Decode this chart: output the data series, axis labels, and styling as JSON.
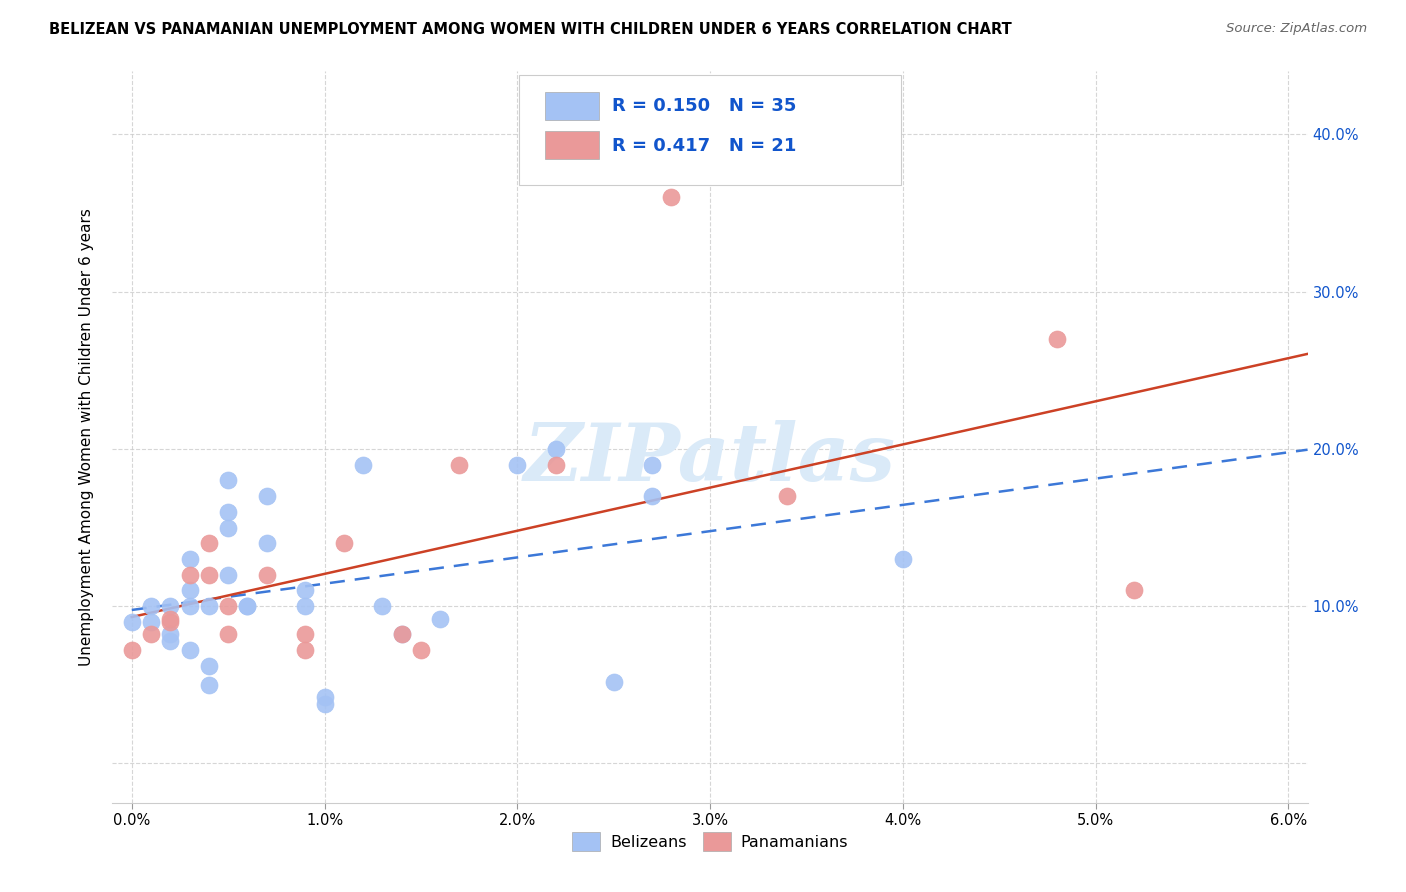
{
  "title": "BELIZEAN VS PANAMANIAN UNEMPLOYMENT AMONG WOMEN WITH CHILDREN UNDER 6 YEARS CORRELATION CHART",
  "source": "Source: ZipAtlas.com",
  "ylabel": "Unemployment Among Women with Children Under 6 years",
  "xlim": [
    -0.001,
    0.061
  ],
  "ylim": [
    -0.025,
    0.44
  ],
  "xticks": [
    0.0,
    0.01,
    0.02,
    0.03,
    0.04,
    0.05,
    0.06
  ],
  "yticks": [
    0.0,
    0.1,
    0.2,
    0.3,
    0.4
  ],
  "ytick_labels_right": [
    "",
    "10.0%",
    "20.0%",
    "30.0%",
    "40.0%"
  ],
  "xtick_labels": [
    "0.0%",
    "1.0%",
    "2.0%",
    "3.0%",
    "4.0%",
    "5.0%",
    "6.0%"
  ],
  "belizean_color": "#a4c2f4",
  "panamanian_color": "#ea9999",
  "belizean_line_color": "#3c78d8",
  "panamanian_line_color": "#cc4125",
  "legend_text_color": "#1155cc",
  "R_belizean": 0.15,
  "N_belizean": 35,
  "R_panamanian": 0.417,
  "N_panamanian": 21,
  "belizean_x": [
    0.0,
    0.001,
    0.001,
    0.002,
    0.002,
    0.002,
    0.003,
    0.003,
    0.003,
    0.003,
    0.004,
    0.004,
    0.004,
    0.005,
    0.005,
    0.005,
    0.005,
    0.006,
    0.006,
    0.007,
    0.007,
    0.009,
    0.009,
    0.01,
    0.01,
    0.012,
    0.013,
    0.014,
    0.016,
    0.02,
    0.022,
    0.025,
    0.027,
    0.027,
    0.04
  ],
  "belizean_y": [
    0.09,
    0.09,
    0.1,
    0.078,
    0.082,
    0.1,
    0.072,
    0.1,
    0.11,
    0.13,
    0.05,
    0.062,
    0.1,
    0.15,
    0.16,
    0.18,
    0.12,
    0.1,
    0.1,
    0.14,
    0.17,
    0.1,
    0.11,
    0.038,
    0.042,
    0.19,
    0.1,
    0.082,
    0.092,
    0.19,
    0.2,
    0.052,
    0.19,
    0.17,
    0.13
  ],
  "panamanian_x": [
    0.0,
    0.001,
    0.002,
    0.002,
    0.003,
    0.004,
    0.004,
    0.005,
    0.005,
    0.007,
    0.009,
    0.009,
    0.011,
    0.014,
    0.015,
    0.017,
    0.022,
    0.028,
    0.034,
    0.048,
    0.052
  ],
  "panamanian_y": [
    0.072,
    0.082,
    0.09,
    0.092,
    0.12,
    0.12,
    0.14,
    0.1,
    0.082,
    0.12,
    0.082,
    0.072,
    0.14,
    0.082,
    0.072,
    0.19,
    0.19,
    0.36,
    0.17,
    0.27,
    0.11
  ],
  "background_color": "#ffffff",
  "watermark_text": "ZIPatlas",
  "watermark_color": "#daeaf8"
}
